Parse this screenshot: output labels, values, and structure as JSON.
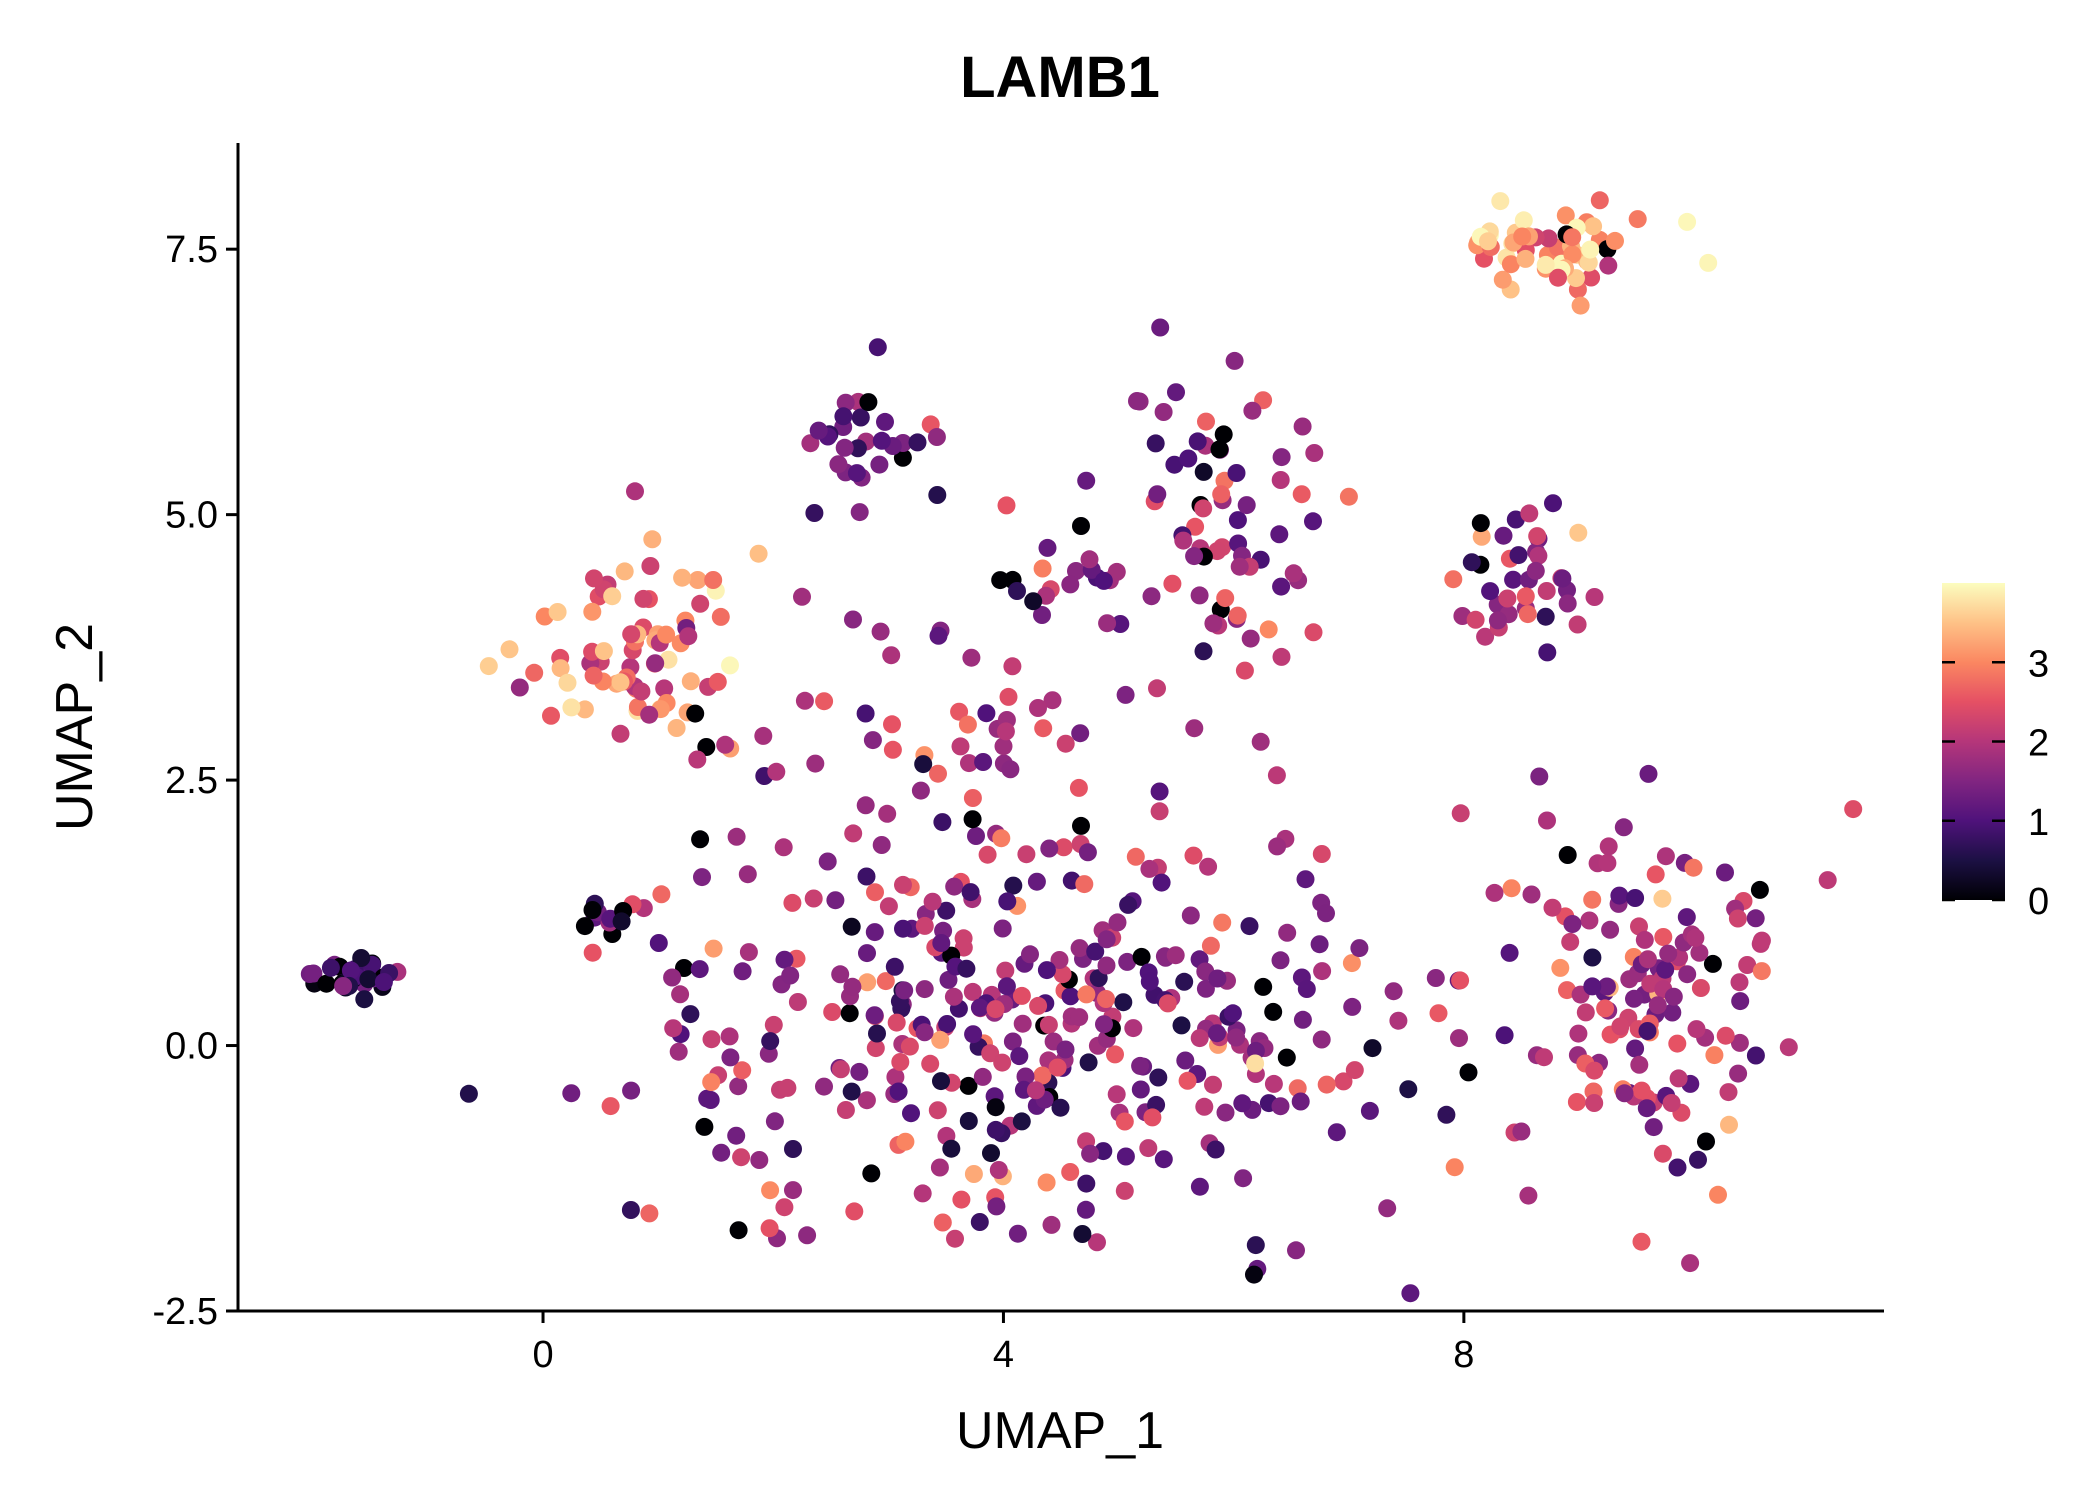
{
  "chart_data": {
    "type": "scatter",
    "title": "LAMB1",
    "xlabel": "UMAP_1",
    "ylabel": "UMAP_2",
    "xlim": [
      -2.65,
      11.65
    ],
    "ylim": [
      -2.5,
      8.5
    ],
    "x_ticks": [
      0,
      4,
      8
    ],
    "x_tick_labels": [
      "0",
      "4",
      "8"
    ],
    "y_ticks": [
      -2.5,
      0.0,
      2.5,
      5.0,
      7.5
    ],
    "y_tick_labels": [
      "-2.5",
      "0.0",
      "2.5",
      "5.0",
      "7.5"
    ],
    "grid": false,
    "legend": {
      "placement": "right",
      "type": "colorbar",
      "range": [
        0,
        4
      ],
      "ticks": [
        0,
        1,
        2,
        3
      ],
      "tick_labels": [
        "0",
        "1",
        "2",
        "3"
      ]
    },
    "colormap": [
      "#000004",
      "#1c1044",
      "#4f127b",
      "#812581",
      "#b5367a",
      "#e55064",
      "#fb8761",
      "#fec287",
      "#fcfdbf"
    ],
    "clusters": [
      {
        "cx": -1.6,
        "cy": 0.65,
        "sx": 0.22,
        "sy": 0.1,
        "n": 30,
        "expr": 0.7
      },
      {
        "cx": 0.5,
        "cy": 1.2,
        "sx": 0.2,
        "sy": 0.1,
        "n": 12,
        "expr": 0.8
      },
      {
        "cx": 0.8,
        "cy": 3.8,
        "sx": 0.45,
        "sy": 0.55,
        "n": 80,
        "expr": 2.9
      },
      {
        "cx": 2.8,
        "cy": 5.7,
        "sx": 0.3,
        "sy": 0.3,
        "n": 30,
        "expr": 1.5
      },
      {
        "cx": 3.6,
        "cy": 3.0,
        "sx": 0.8,
        "sy": 0.6,
        "n": 40,
        "expr": 2.0
      },
      {
        "cx": 4.7,
        "cy": 4.3,
        "sx": 0.35,
        "sy": 0.15,
        "n": 20,
        "expr": 1.6
      },
      {
        "cx": 5.9,
        "cy": 4.8,
        "sx": 0.5,
        "sy": 0.7,
        "n": 70,
        "expr": 1.8
      },
      {
        "cx": 8.8,
        "cy": 7.55,
        "sx": 0.45,
        "sy": 0.2,
        "n": 55,
        "expr": 3.2
      },
      {
        "cx": 8.6,
        "cy": 4.2,
        "sx": 0.35,
        "sy": 0.45,
        "n": 40,
        "expr": 1.9
      },
      {
        "cx": 4.4,
        "cy": 0.2,
        "sx": 1.8,
        "sy": 1.1,
        "n": 400,
        "expr": 1.7
      },
      {
        "cx": 9.6,
        "cy": 0.4,
        "sx": 0.65,
        "sy": 0.8,
        "n": 140,
        "expr": 1.8
      }
    ]
  }
}
